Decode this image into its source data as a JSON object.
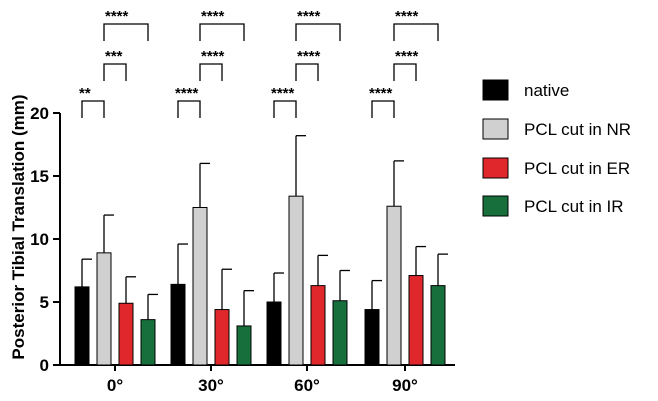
{
  "chart_data": {
    "type": "bar",
    "title": "",
    "xlabel": "",
    "ylabel": "Posterior Tibial Translation (mm)",
    "ylim": [
      0,
      20
    ],
    "yticks": [
      0,
      5,
      10,
      15,
      20
    ],
    "categories": [
      "0°",
      "30°",
      "60°",
      "90°"
    ],
    "series": [
      {
        "name": "native",
        "color": "#000000",
        "values": [
          6.2,
          6.4,
          5.0,
          4.4
        ],
        "errors": [
          2.2,
          3.2,
          2.3,
          2.3
        ]
      },
      {
        "name": "PCL cut in NR",
        "color": "#d0d0d0",
        "values": [
          8.9,
          12.5,
          13.4,
          12.6
        ],
        "errors": [
          3.0,
          3.5,
          4.8,
          3.6
        ]
      },
      {
        "name": "PCL cut in ER",
        "color": "#e0282c",
        "values": [
          4.9,
          4.4,
          6.3,
          7.1
        ],
        "errors": [
          2.1,
          3.2,
          2.4,
          2.3
        ]
      },
      {
        "name": "PCL cut in IR",
        "color": "#17703c",
        "values": [
          3.6,
          3.1,
          5.1,
          6.3
        ],
        "errors": [
          2.0,
          2.8,
          2.4,
          2.5
        ]
      }
    ],
    "legend_position": "right",
    "significance": [
      {
        "group": 0,
        "from": 0,
        "to": 1,
        "label": "**"
      },
      {
        "group": 0,
        "from": 1,
        "to": 2,
        "label": "***"
      },
      {
        "group": 0,
        "from": 1,
        "to": 3,
        "label": "****"
      },
      {
        "group": 1,
        "from": 0,
        "to": 1,
        "label": "****"
      },
      {
        "group": 1,
        "from": 1,
        "to": 2,
        "label": "****"
      },
      {
        "group": 1,
        "from": 1,
        "to": 3,
        "label": "****"
      },
      {
        "group": 2,
        "from": 0,
        "to": 1,
        "label": "****"
      },
      {
        "group": 2,
        "from": 1,
        "to": 2,
        "label": "****"
      },
      {
        "group": 2,
        "from": 1,
        "to": 3,
        "label": "****"
      },
      {
        "group": 3,
        "from": 0,
        "to": 1,
        "label": "****"
      },
      {
        "group": 3,
        "from": 1,
        "to": 2,
        "label": "****"
      },
      {
        "group": 3,
        "from": 1,
        "to": 3,
        "label": "****"
      }
    ]
  }
}
